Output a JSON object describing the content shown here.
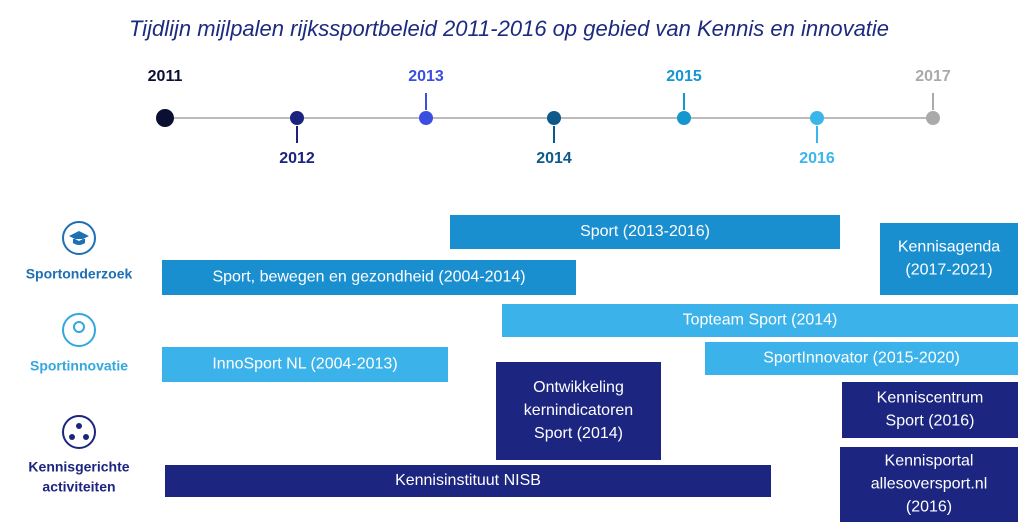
{
  "title": "Tijdlijn mijlpalen rijkssportbeleid 2011-2016 op gebied van Kennis en innovatie",
  "years": [
    "2011",
    "2012",
    "2013",
    "2014",
    "2015",
    "2016",
    "2017"
  ],
  "categories": [
    {
      "lines": [
        "Sportonderzoek"
      ]
    },
    {
      "lines": [
        "Sportinnovatie"
      ]
    },
    {
      "lines": [
        "Kennisgerichte",
        "activiteiten"
      ]
    }
  ],
  "bars": [
    {
      "lines": [
        "Sport (2013-2016)"
      ]
    },
    {
      "lines": [
        "Sport, bewegen en gezondheid (2004-2014)"
      ]
    },
    {
      "lines": [
        "Kennisagenda",
        "(2017-2021)"
      ]
    },
    {
      "lines": [
        "Topteam Sport (2014)"
      ]
    },
    {
      "lines": [
        "SportInnovator (2015-2020)"
      ]
    },
    {
      "lines": [
        "InnoSport NL (2004-2013)"
      ]
    },
    {
      "lines": [
        "Ontwikkeling",
        "kernindicatoren",
        "Sport (2014)"
      ]
    },
    {
      "lines": [
        "Kenniscentrum",
        "Sport (2016)"
      ]
    },
    {
      "lines": [
        "Kennisportal",
        "allesoversport.nl",
        "(2016)"
      ]
    },
    {
      "lines": [
        "Kennisinstituut NISB"
      ]
    }
  ]
}
